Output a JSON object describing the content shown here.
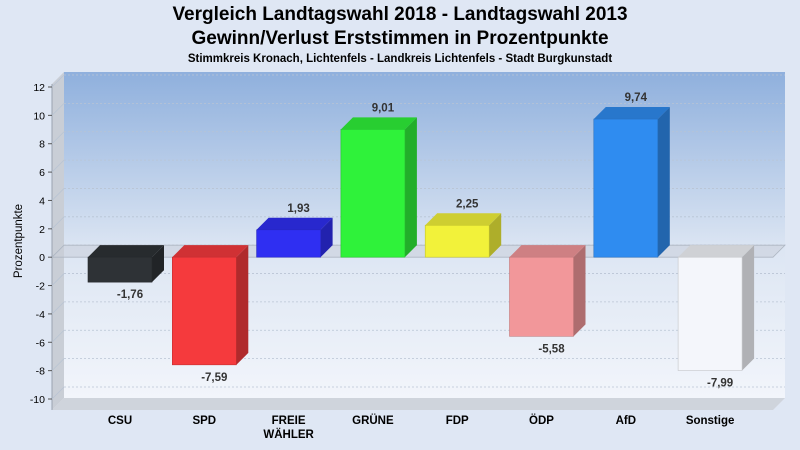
{
  "chart_data": {
    "type": "bar",
    "title": "Vergleich Landtagswahl 2018 - Landtagswahl 2013",
    "subtitle": "Gewinn/Verlust Erststimmen in Prozentpunkte",
    "subtitle2": "Stimmkreis Kronach, Lichtenfels - Landkreis Lichtenfels - Stadt Burgkunstadt",
    "ylabel": "Prozentpunkte",
    "xlabel": "",
    "ylim": [
      -10,
      12
    ],
    "yticks": [
      -10,
      -8,
      -6,
      -4,
      -2,
      0,
      2,
      4,
      6,
      8,
      10,
      12
    ],
    "grid": true,
    "categories": [
      "CSU",
      "SPD",
      "FREIE WÄHLER",
      "GRÜNE",
      "FDP",
      "ÖDP",
      "AfD",
      "Sonstige"
    ],
    "category_lines": [
      [
        "CSU"
      ],
      [
        "SPD"
      ],
      [
        "FREIE",
        "WÄHLER"
      ],
      [
        "GRÜNE"
      ],
      [
        "FDP"
      ],
      [
        "ÖDP"
      ],
      [
        "AfD"
      ],
      [
        "Sonstige"
      ]
    ],
    "values": [
      -1.76,
      -7.59,
      1.93,
      9.01,
      2.25,
      -5.58,
      9.74,
      -7.99
    ],
    "value_labels": [
      "-1,76",
      "-7,59",
      "1,93",
      "9,01",
      "2,25",
      "-5,58",
      "9,74",
      "-7,99"
    ],
    "colors": [
      "#2e3236",
      "#f53a3d",
      "#2f2ff2",
      "#2ff23a",
      "#f2f23a",
      "#f2979a",
      "#2f8cf0",
      "#f4f6fb"
    ]
  }
}
